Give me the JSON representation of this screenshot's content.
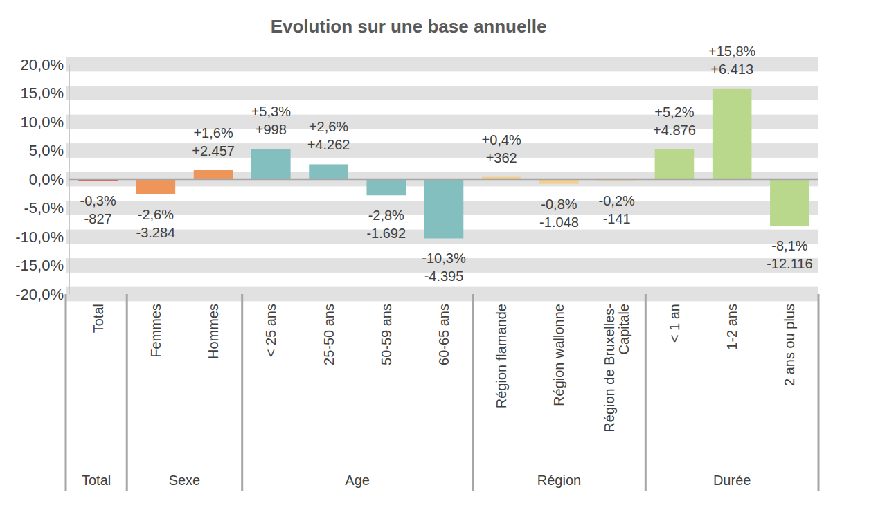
{
  "chart_data": {
    "type": "bar",
    "title": "Evolution sur une base annuelle",
    "categories": [
      "Total",
      "Femmes",
      "Hommes",
      "< 25 ans",
      "25-50 ans",
      "50-59 ans",
      "60-65 ans",
      "Région flamande",
      "Région wallonne",
      "Région de Bruxelles-Capitale",
      "< 1 an",
      "1-2 ans",
      "2 ans ou plus"
    ],
    "values": [
      -0.3,
      -2.6,
      1.6,
      5.3,
      2.6,
      -2.8,
      -10.3,
      0.4,
      -0.8,
      -0.2,
      5.2,
      15.8,
      -8.1
    ],
    "value_labels": [
      "-0,3%",
      "-2,6%",
      "+1,6%",
      "+5,3%",
      "+2,6%",
      "-2,8%",
      "-10,3%",
      "+0,4%",
      "-0,8%",
      "-0,2%",
      "+5,2%",
      "+15,8%",
      "-8,1%"
    ],
    "counts": [
      -827,
      -3284,
      2457,
      998,
      4262,
      -1692,
      -4395,
      362,
      -1048,
      -141,
      4876,
      6413,
      -12116
    ],
    "count_labels": [
      "-827",
      "-3.284",
      "+2.457",
      "+998",
      "+4.262",
      "-1.692",
      "-4.395",
      "+362",
      "-1.048",
      "-141",
      "+4.876",
      "+6.413",
      "-12.116"
    ],
    "colors": [
      "#e8554e",
      "#f0955a",
      "#f0955a",
      "#84bfbf",
      "#84bfbf",
      "#84bfbf",
      "#84bfbf",
      "#f6cd8b",
      "#f6cd8b",
      "#f6cd8b",
      "#b9d88b",
      "#b9d88b",
      "#b9d88b"
    ],
    "groups": [
      {
        "label": "Total",
        "start": 0,
        "end": 0
      },
      {
        "label": "Sexe",
        "start": 1,
        "end": 2
      },
      {
        "label": "Age",
        "start": 3,
        "end": 6
      },
      {
        "label": "Région",
        "start": 7,
        "end": 9
      },
      {
        "label": "Durée",
        "start": 10,
        "end": 12
      }
    ],
    "ylim": [
      -20,
      20
    ],
    "yticks": [
      {
        "value": -20,
        "label": "-20,0%"
      },
      {
        "value": -15,
        "label": "-15,0%"
      },
      {
        "value": -10,
        "label": "-10,0%"
      },
      {
        "value": -5,
        "label": "-5,0%"
      },
      {
        "value": 0,
        "label": "0,0%"
      },
      {
        "value": 5,
        "label": "5,0%"
      },
      {
        "value": 10,
        "label": "10,0%"
      },
      {
        "value": 15,
        "label": "15,0%"
      },
      {
        "value": 20,
        "label": "20,0%"
      }
    ],
    "grid": true,
    "data_labels": true
  }
}
